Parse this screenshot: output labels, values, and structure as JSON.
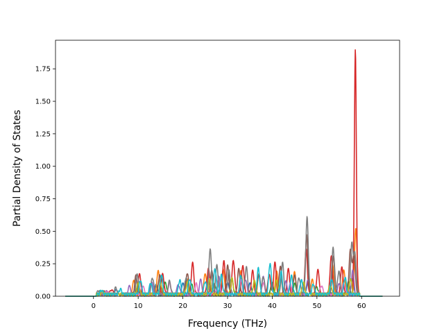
{
  "chart_data": {
    "type": "line",
    "title": "",
    "xlabel": "Frequency (THz)",
    "ylabel": "Partial Density of States",
    "xlim": [
      -8.5,
      68.5
    ],
    "ylim": [
      0,
      1.97
    ],
    "x_ticks": [
      0,
      10,
      20,
      30,
      40,
      50,
      60
    ],
    "y_ticks": [
      0.0,
      0.25,
      0.5,
      0.75,
      1.0,
      1.25,
      1.5,
      1.75
    ],
    "x_tick_labels": [
      "0",
      "10",
      "20",
      "30",
      "40",
      "50",
      "60"
    ],
    "y_tick_labels": [
      "0.00",
      "0.25",
      "0.50",
      "0.75",
      "1.00",
      "1.25",
      "1.50",
      "1.75"
    ],
    "grid": false,
    "legend": "none",
    "x_range": [
      -6.3,
      64.7
    ],
    "series": [
      {
        "color": "#1f77b4",
        "peaks": [
          [
            2,
            0.02
          ],
          [
            5,
            0.03
          ],
          [
            10,
            0.06
          ],
          [
            14,
            0.07
          ],
          [
            20,
            0.08
          ],
          [
            26,
            0.09
          ],
          [
            30,
            0.1
          ],
          [
            35,
            0.08
          ],
          [
            40,
            0.09
          ],
          [
            44,
            0.07
          ],
          [
            48,
            0.1
          ],
          [
            54,
            0.06
          ],
          [
            58,
            0.12
          ]
        ]
      },
      {
        "color": "#ff7f0e",
        "peaks": [
          [
            3,
            0.02
          ],
          [
            9,
            0.1
          ],
          [
            14.5,
            0.18
          ],
          [
            21,
            0.12
          ],
          [
            25,
            0.17
          ],
          [
            29,
            0.2
          ],
          [
            33,
            0.18
          ],
          [
            37,
            0.15
          ],
          [
            41,
            0.17
          ],
          [
            45,
            0.17
          ],
          [
            49,
            0.12
          ],
          [
            53.5,
            0.22
          ],
          [
            56,
            0.18
          ],
          [
            58.7,
            0.5
          ]
        ]
      },
      {
        "color": "#2ca02c",
        "peaks": [
          [
            2,
            0.02
          ],
          [
            10,
            0.08
          ],
          [
            16,
            0.1
          ],
          [
            22,
            0.07
          ],
          [
            27,
            0.09
          ],
          [
            31,
            0.12
          ],
          [
            36,
            0.1
          ],
          [
            40,
            0.09
          ],
          [
            45,
            0.08
          ],
          [
            50,
            0.06
          ],
          [
            57,
            0.1
          ]
        ]
      },
      {
        "color": "#d62728",
        "peaks": [
          [
            1.5,
            0.02
          ],
          [
            4,
            0.04
          ],
          [
            10.3,
            0.15
          ],
          [
            15.5,
            0.16
          ],
          [
            22.2,
            0.24
          ],
          [
            25.7,
            0.2
          ],
          [
            29.2,
            0.26
          ],
          [
            31.3,
            0.27
          ],
          [
            33.4,
            0.23
          ],
          [
            35.6,
            0.18
          ],
          [
            39.3,
            0.16
          ],
          [
            40.6,
            0.24
          ],
          [
            43.6,
            0.19
          ],
          [
            47.6,
            0.34
          ],
          [
            50.2,
            0.19
          ],
          [
            53.2,
            0.29
          ],
          [
            55.6,
            0.21
          ],
          [
            58.6,
            1.89
          ]
        ]
      },
      {
        "color": "#9467bd",
        "peaks": [
          [
            3,
            0.02
          ],
          [
            8,
            0.06
          ],
          [
            13,
            0.1
          ],
          [
            19,
            0.08
          ],
          [
            24,
            0.11
          ],
          [
            28,
            0.14
          ],
          [
            34,
            0.12
          ],
          [
            38,
            0.13
          ],
          [
            43,
            0.1
          ],
          [
            48,
            0.12
          ],
          [
            55,
            0.09
          ],
          [
            58,
            0.18
          ]
        ]
      },
      {
        "color": "#8c564b",
        "peaks": [
          [
            2.5,
            0.02
          ],
          [
            9.5,
            0.14
          ],
          [
            14.8,
            0.15
          ],
          [
            21,
            0.17
          ],
          [
            26.5,
            0.19
          ],
          [
            30,
            0.22
          ],
          [
            32.5,
            0.19
          ],
          [
            37,
            0.16
          ],
          [
            41.8,
            0.22
          ],
          [
            45,
            0.15
          ],
          [
            47.7,
            0.45
          ],
          [
            53.7,
            0.3
          ],
          [
            57.5,
            0.35
          ],
          [
            58.3,
            0.3
          ]
        ]
      },
      {
        "color": "#e377c2",
        "peaks": [
          [
            3,
            0.02
          ],
          [
            11,
            0.07
          ],
          [
            17,
            0.09
          ],
          [
            23,
            0.08
          ],
          [
            28,
            0.1
          ],
          [
            33,
            0.11
          ],
          [
            38,
            0.09
          ],
          [
            44,
            0.08
          ],
          [
            51,
            0.07
          ],
          [
            56,
            0.09
          ]
        ]
      },
      {
        "color": "#7f7f7f",
        "peaks": [
          [
            1.2,
            0.03
          ],
          [
            5,
            0.05
          ],
          [
            9.8,
            0.16
          ],
          [
            13.2,
            0.13
          ],
          [
            17,
            0.1
          ],
          [
            20.7,
            0.13
          ],
          [
            26.1,
            0.35
          ],
          [
            27.6,
            0.22
          ],
          [
            30.3,
            0.18
          ],
          [
            34.2,
            0.21
          ],
          [
            38,
            0.14
          ],
          [
            42.3,
            0.24
          ],
          [
            46,
            0.13
          ],
          [
            47.8,
            0.59
          ],
          [
            53.6,
            0.36
          ],
          [
            54.9,
            0.18
          ],
          [
            57.8,
            0.38
          ],
          [
            58.5,
            0.3
          ]
        ]
      },
      {
        "color": "#bcbd22",
        "peaks": [
          [
            2,
            0.02
          ],
          [
            10,
            0.08
          ],
          [
            15,
            0.09
          ],
          [
            21,
            0.09
          ],
          [
            26,
            0.11
          ],
          [
            31,
            0.12
          ],
          [
            36,
            0.1
          ],
          [
            41,
            0.1
          ],
          [
            47,
            0.09
          ],
          [
            53,
            0.07
          ],
          [
            57.5,
            0.12
          ]
        ]
      },
      {
        "color": "#17becf",
        "peaks": [
          [
            1.8,
            0.03
          ],
          [
            6,
            0.04
          ],
          [
            10.5,
            0.11
          ],
          [
            12.8,
            0.09
          ],
          [
            15.2,
            0.15
          ],
          [
            19.3,
            0.11
          ],
          [
            21.5,
            0.12
          ],
          [
            25,
            0.1
          ],
          [
            27.2,
            0.2
          ],
          [
            28.6,
            0.15
          ],
          [
            33,
            0.15
          ],
          [
            36.9,
            0.2
          ],
          [
            39.5,
            0.24
          ],
          [
            42,
            0.17
          ],
          [
            44.3,
            0.14
          ],
          [
            46.5,
            0.11
          ],
          [
            49.2,
            0.08
          ],
          [
            53.3,
            0.12
          ],
          [
            56.3,
            0.13
          ]
        ]
      }
    ]
  }
}
